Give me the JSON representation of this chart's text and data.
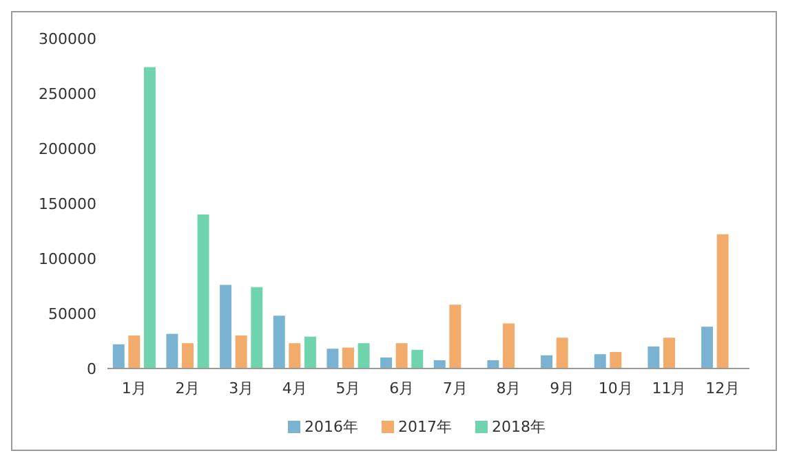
{
  "chart_data": {
    "type": "bar",
    "categories": [
      "1月",
      "2月",
      "3月",
      "4月",
      "5月",
      "6月",
      "7月",
      "8月",
      "9月",
      "10月",
      "11月",
      "12月"
    ],
    "series": [
      {
        "name": "2016年",
        "color": "#7ab3d1",
        "values": [
          22000,
          31500,
          76000,
          48000,
          18000,
          10000,
          7500,
          7500,
          12000,
          13000,
          20000,
          38000
        ]
      },
      {
        "name": "2017年",
        "color": "#f3ab6b",
        "values": [
          30000,
          23000,
          30000,
          23000,
          19000,
          23000,
          58000,
          41000,
          28000,
          15000,
          28000,
          122000
        ]
      },
      {
        "name": "2018年",
        "color": "#6fd4ad",
        "values": [
          274000,
          140000,
          74000,
          29000,
          23000,
          17000,
          null,
          null,
          null,
          null,
          null,
          null
        ]
      }
    ],
    "ylim": [
      0,
      300000
    ],
    "yticks": [
      0,
      50000,
      100000,
      150000,
      200000,
      250000,
      300000
    ],
    "grid": false,
    "legend": "bottom"
  }
}
